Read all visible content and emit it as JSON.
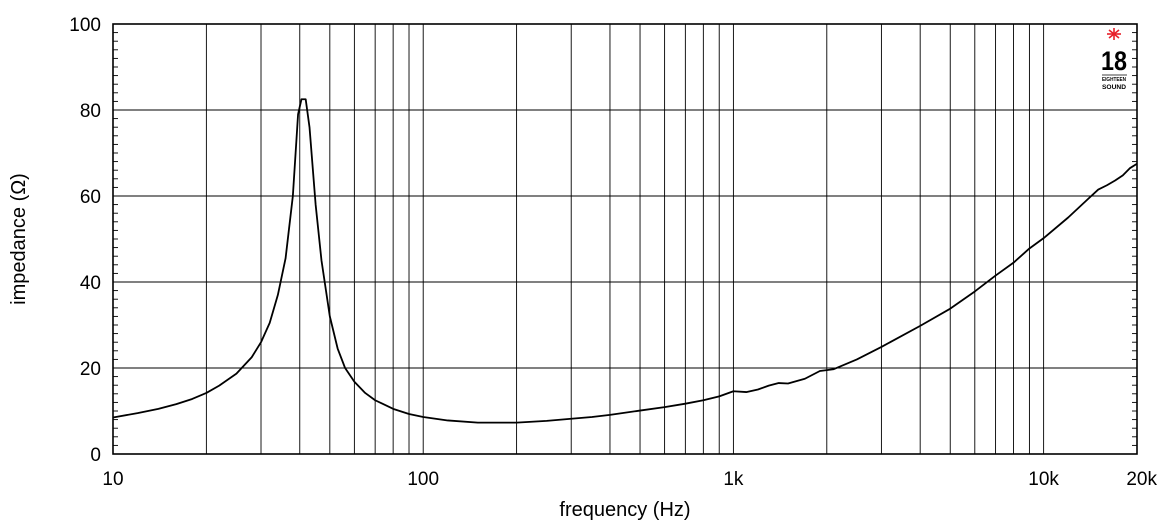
{
  "chart_data": {
    "type": "line",
    "xlabel": "frequency (Hz)",
    "ylabel": "impedance (Ω)",
    "x_scale": "log",
    "xlim": [
      10,
      20000
    ],
    "ylim": [
      0,
      100
    ],
    "grid": true,
    "y_ticks": [
      {
        "value": 0,
        "label": "0"
      },
      {
        "value": 20,
        "label": "20"
      },
      {
        "value": 40,
        "label": "40"
      },
      {
        "value": 60,
        "label": "60"
      },
      {
        "value": 80,
        "label": "80"
      },
      {
        "value": 100,
        "label": "100"
      }
    ],
    "x_tick_labels": [
      {
        "value": 10,
        "label": "10"
      },
      {
        "value": 100,
        "label": "100"
      },
      {
        "value": 1000,
        "label": "1k"
      },
      {
        "value": 10000,
        "label": "10k"
      },
      {
        "value": 20000,
        "label": "20k"
      }
    ],
    "x_gridlines": [
      20,
      30,
      40,
      50,
      60,
      70,
      80,
      90,
      100,
      200,
      300,
      400,
      500,
      600,
      700,
      800,
      900,
      1000,
      2000,
      3000,
      4000,
      5000,
      6000,
      7000,
      8000,
      9000,
      10000
    ],
    "series": [
      {
        "color": "#000000",
        "points": [
          [
            10,
            8.5
          ],
          [
            12,
            9.5
          ],
          [
            14,
            10.5
          ],
          [
            16,
            11.6
          ],
          [
            18,
            12.8
          ],
          [
            20,
            14.2
          ],
          [
            22,
            15.9
          ],
          [
            25,
            18.7
          ],
          [
            28,
            22.5
          ],
          [
            30,
            26.0
          ],
          [
            32,
            30.5
          ],
          [
            34,
            37.0
          ],
          [
            36,
            45.5
          ],
          [
            38,
            60.0
          ],
          [
            39.5,
            79.0
          ],
          [
            40.5,
            82.5
          ],
          [
            41.8,
            82.5
          ],
          [
            43,
            76.0
          ],
          [
            45,
            58.0
          ],
          [
            47,
            45.0
          ],
          [
            50,
            32.0
          ],
          [
            53,
            24.5
          ],
          [
            56,
            20.0
          ],
          [
            60,
            16.8
          ],
          [
            65,
            14.2
          ],
          [
            70,
            12.5
          ],
          [
            80,
            10.5
          ],
          [
            90,
            9.3
          ],
          [
            100,
            8.6
          ],
          [
            120,
            7.8
          ],
          [
            150,
            7.3
          ],
          [
            200,
            7.3
          ],
          [
            250,
            7.7
          ],
          [
            300,
            8.2
          ],
          [
            350,
            8.6
          ],
          [
            400,
            9.1
          ],
          [
            500,
            10.1
          ],
          [
            600,
            10.9
          ],
          [
            700,
            11.7
          ],
          [
            800,
            12.5
          ],
          [
            900,
            13.4
          ],
          [
            1000,
            14.6
          ],
          [
            1100,
            14.4
          ],
          [
            1200,
            15.0
          ],
          [
            1300,
            15.9
          ],
          [
            1400,
            16.5
          ],
          [
            1500,
            16.4
          ],
          [
            1700,
            17.5
          ],
          [
            1900,
            19.3
          ],
          [
            2000,
            19.5
          ],
          [
            2100,
            19.7
          ],
          [
            2500,
            22.0
          ],
          [
            3000,
            24.9
          ],
          [
            4000,
            29.8
          ],
          [
            5000,
            33.8
          ],
          [
            6000,
            37.8
          ],
          [
            7000,
            41.5
          ],
          [
            8000,
            44.5
          ],
          [
            9000,
            47.8
          ],
          [
            10000,
            50.2
          ],
          [
            12000,
            55.0
          ],
          [
            14000,
            59.5
          ],
          [
            15000,
            61.5
          ],
          [
            16000,
            62.5
          ],
          [
            17000,
            63.6
          ],
          [
            18000,
            64.8
          ],
          [
            19000,
            66.5
          ],
          [
            20000,
            67.5
          ]
        ]
      }
    ]
  },
  "logo": {
    "number": "18",
    "line1": "EIGHTEEN",
    "line2": "SOUND",
    "star_color": "#e8202a"
  }
}
